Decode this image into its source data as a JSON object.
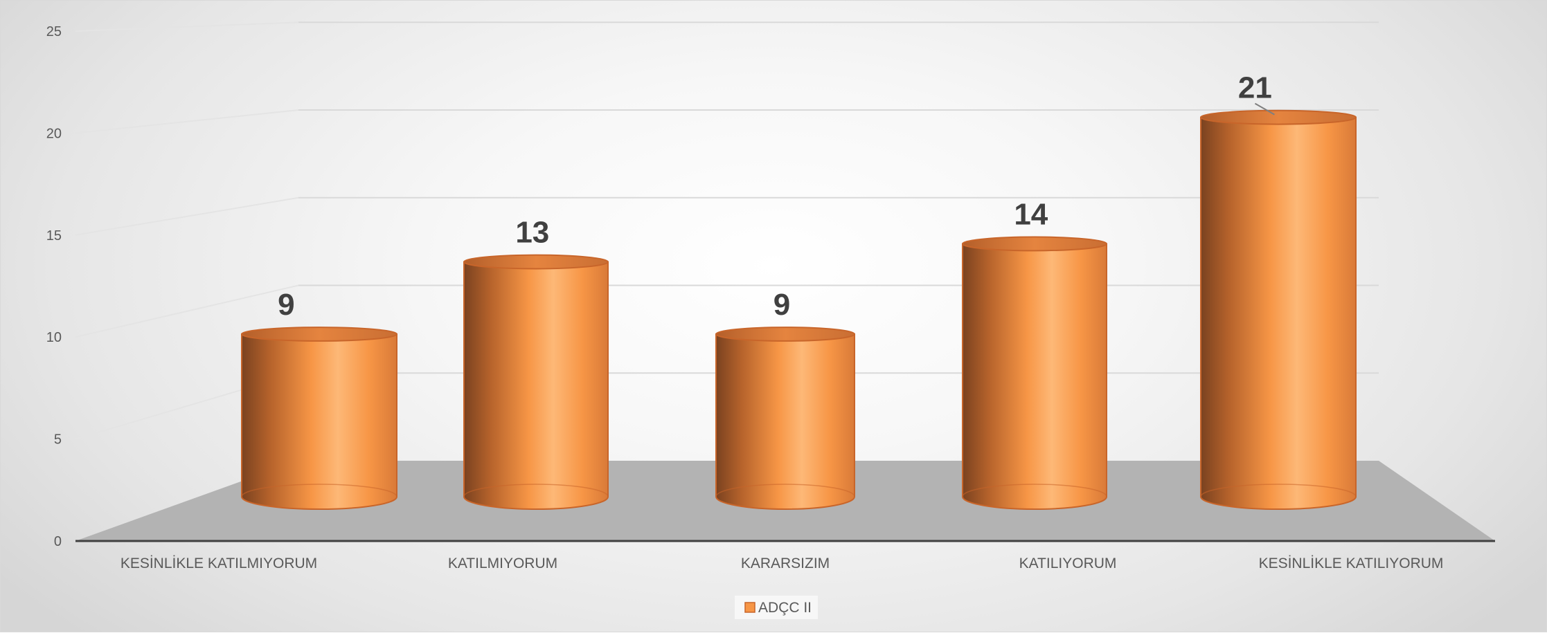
{
  "chart_data": {
    "type": "bar",
    "style": "3d-cylinder",
    "categories": [
      "KESİNLİKLE KATILMIYORUM",
      "KATILMIYORUM",
      "KARARSIZIM",
      "KATILIYORUM",
      "KESİNLİKLE KATILIYORUM"
    ],
    "series": [
      {
        "name": "ADÇC II",
        "values": [
          9,
          13,
          9,
          14,
          21
        ],
        "color": "#F79646"
      }
    ],
    "ylim": [
      0,
      25
    ],
    "yticks": [
      0,
      5,
      10,
      15,
      20,
      25
    ],
    "grid": true,
    "legend": "bottom-center",
    "colors": {
      "bar_light": "#FDB877",
      "bar_mid": "#F79646",
      "bar_dark": "#7A4220",
      "bar_outline": "#C8652A",
      "floor": "#B3B3B3",
      "grid": "#D9D9D9",
      "axis": "#404040"
    }
  }
}
